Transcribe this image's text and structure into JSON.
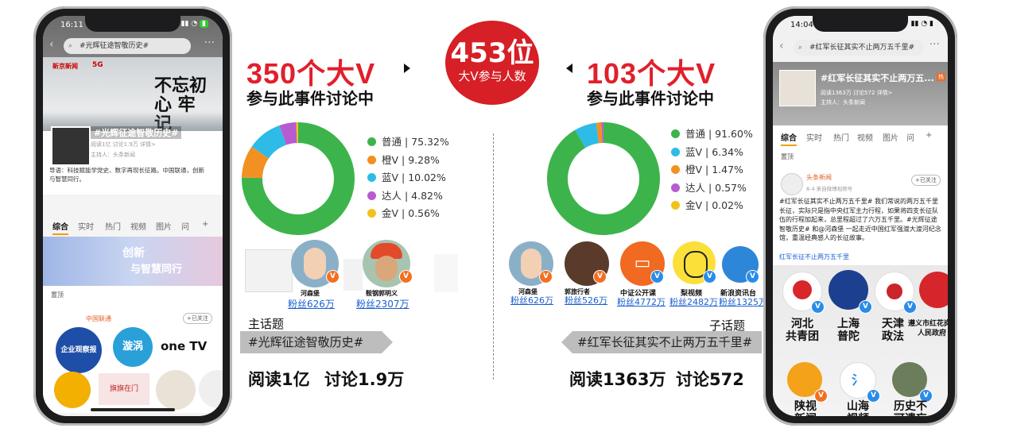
{
  "left_phone": {
    "time": "16:11",
    "search_text": "#光辉征途智敬历史#",
    "banner_logos": [
      "新京新闻",
      "5G"
    ],
    "banner_calligraphy": "不忘初心 牢记",
    "topic_title": "#光辉征途智敬历史#",
    "topic_meta": "阅读1亿  讨论1.9万  详情>",
    "topic_host": "主持人：头条新闻",
    "guide_text": "导语：科技赋能学党史、数字再现长征路。中国联通，创新与智慧同行。",
    "tabs": [
      "综合",
      "实时",
      "热门",
      "视频",
      "图片",
      "问",
      "+"
    ],
    "poster_text_1": "创新",
    "poster_text_2": "与智慧同行",
    "pinned_label": "置顶",
    "post_author": "中国联通",
    "follow_label": "+已关注",
    "tv_label": "one TV",
    "logo_1": "企业观察报",
    "logo_2": "漩涡",
    "logo_3": "旗旗在门"
  },
  "left_stats": {
    "big_v": "350个大V",
    "sub": "参与此事件讨论中",
    "legend": [
      {
        "label": "普通 | 75.32%",
        "value": 75.32,
        "color": "#3db44b"
      },
      {
        "label": "橙V | 9.28%",
        "value": 9.28,
        "color": "#f39022"
      },
      {
        "label": "蓝V | 10.02%",
        "value": 10.02,
        "color": "#2ebbe8"
      },
      {
        "label": "达人 | 4.82%",
        "value": 4.82,
        "color": "#b65bd0"
      },
      {
        "label": "金V | 0.56%",
        "value": 0.56,
        "color": "#f2c21b"
      }
    ],
    "accounts": [
      {
        "name": "河森堡",
        "fans": "粉丝626万"
      },
      {
        "name": "鞍钢郭明义",
        "fans": "粉丝2307万"
      }
    ],
    "topic_label": "主话题",
    "topic": "#光辉征途智敬历史#",
    "reads": "阅读1亿",
    "discussions": "讨论1.9万"
  },
  "center_badge": {
    "number": "453位",
    "caption": "大V参与人数"
  },
  "right_stats": {
    "big_v": "103个大V",
    "sub": "参与此事件讨论中",
    "legend": [
      {
        "label": "普通 | 91.60%",
        "value": 91.6,
        "color": "#3db44b"
      },
      {
        "label": "蓝V | 6.34%",
        "value": 6.34,
        "color": "#2ebbe8"
      },
      {
        "label": "橙V | 1.47%",
        "value": 1.47,
        "color": "#f39022"
      },
      {
        "label": "达人 | 0.57%",
        "value": 0.57,
        "color": "#b65bd0"
      },
      {
        "label": "金V | 0.02%",
        "value": 0.02,
        "color": "#f2c21b"
      }
    ],
    "accounts": [
      {
        "name": "河森堡",
        "fans": "粉丝626万"
      },
      {
        "name": "郭旅行者",
        "fans": "粉丝526万"
      },
      {
        "name": "中证公开课",
        "fans": "粉丝4772万"
      },
      {
        "name": "梨视频",
        "fans": "粉丝2482万"
      },
      {
        "name": "新浪资讯台",
        "fans": "粉丝1325万"
      }
    ],
    "topic_label": "子话题",
    "topic": "#红军长征其实不止两万五千里#",
    "reads": "阅读1363万",
    "discussions": "讨论572"
  },
  "right_phone": {
    "time": "14:04",
    "search_text": "#红军长征其实不止两万五千里#",
    "topic_title": "#红军长征其实不止两万五...",
    "topic_meta": "阅读1363万  讨论572  详情>",
    "topic_host": "主持人：头条新闻",
    "tabs": [
      "综合",
      "实时",
      "热门",
      "视频",
      "图片",
      "问",
      "+"
    ],
    "pinned_label": "置顶",
    "post_author": "头条新闻",
    "post_meta": "8-4  来自微博视频号",
    "follow_label": "+已关注",
    "post_text": "#红军长征其实不止两万五千里# 我们常说的两万五千里长征，实际只是指中央红军主力行程，如果将四支长征队伍的行程加起来，总里程超过了六万五千里。#光辉征途智敬历史# 和@河森堡 一起走近中国红军强渡大渡河纪念馆，重温经典感人的长征故事。",
    "post_link": "红军长征不止两万五千里",
    "orgs": [
      {
        "label": "河北\n共青团",
        "logo": "河北共青团"
      },
      {
        "label": "上海\n普陀",
        "logo": "上海普陀"
      },
      {
        "label": "天津\n政法",
        "logo": "天津政法"
      },
      {
        "label": "遵义市红花岗区\n人民政府",
        "logo": ""
      }
    ],
    "orgs2": [
      {
        "label": "陕视\n新闻",
        "logo": "陕视新闻"
      },
      {
        "label": "山海\n视频",
        "logo": "山海"
      },
      {
        "label": "历史不\n可遗忘",
        "logo": ""
      }
    ]
  }
}
